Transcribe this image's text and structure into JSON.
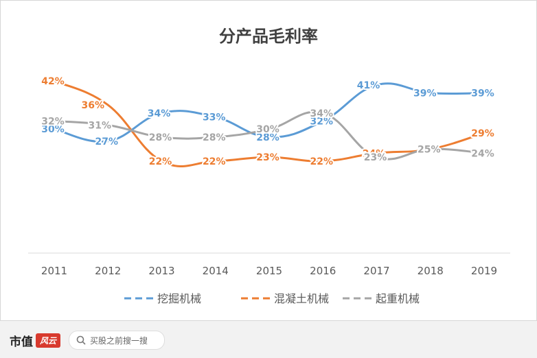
{
  "chart_data": {
    "type": "line",
    "title": "分产品毛利率",
    "categories": [
      "2011",
      "2012",
      "2013",
      "2014",
      "2015",
      "2016",
      "2017",
      "2018",
      "2019"
    ],
    "series": [
      {
        "name": "挖掘机械",
        "color": "#5b9bd5",
        "values": [
          30,
          27,
          34,
          33,
          28,
          32,
          41,
          39,
          39
        ],
        "labels": [
          "30%",
          "27%",
          "34%",
          "33%",
          "28%",
          "32%",
          "41%",
          "39%",
          "39%"
        ]
      },
      {
        "name": "混凝土机械",
        "color": "#ed7d31",
        "values": [
          42,
          36,
          22,
          22,
          23,
          22,
          24,
          25,
          29
        ],
        "labels": [
          "42%",
          "36%",
          "22%",
          "22%",
          "23%",
          "22%",
          "24%",
          "25%",
          "29%"
        ]
      },
      {
        "name": "起重机械",
        "color": "#a5a5a5",
        "values": [
          32,
          31,
          28,
          28,
          30,
          34,
          23,
          25,
          24
        ],
        "labels": [
          "32%",
          "31%",
          "28%",
          "28%",
          "30%",
          "34%",
          "23%",
          "25%",
          "24%"
        ]
      }
    ],
    "legend_position": "bottom",
    "grid": false
  },
  "footer": {
    "brand": "市值",
    "brand_badge": "风云",
    "search_placeholder": "买股之前搜一搜"
  }
}
